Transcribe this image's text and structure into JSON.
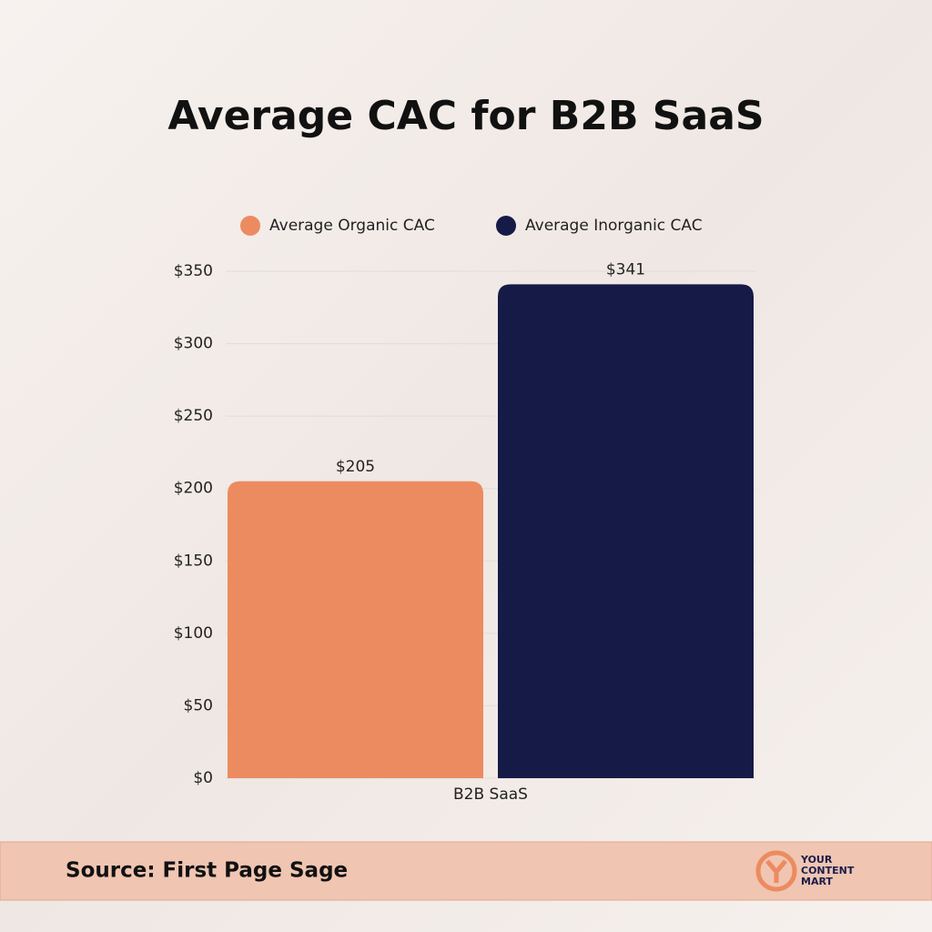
{
  "chart_data": {
    "type": "bar",
    "title": "Average CAC for B2B SaaS",
    "categories": [
      "B2B SaaS"
    ],
    "series": [
      {
        "name": "Average Organic CAC",
        "color": "#ec8b60",
        "values": [
          205
        ],
        "value_labels": [
          "$205"
        ]
      },
      {
        "name": "Average Inorganic CAC",
        "color": "#161a47",
        "values": [
          341
        ],
        "value_labels": [
          "$341"
        ]
      }
    ],
    "ylim": [
      0,
      350
    ],
    "yticks": [
      {
        "value": 0,
        "label": "$0"
      },
      {
        "value": 50,
        "label": "$50"
      },
      {
        "value": 100,
        "label": "$100"
      },
      {
        "value": 150,
        "label": "$150"
      },
      {
        "value": 200,
        "label": "$200"
      },
      {
        "value": 250,
        "label": "$250"
      },
      {
        "value": 300,
        "label": "$300"
      },
      {
        "value": 350,
        "label": "$350"
      }
    ],
    "grid": true,
    "legend": "top"
  },
  "footer": {
    "source": "Source: First Page Sage",
    "logo": [
      "YOUR",
      "CONTENT",
      "MART"
    ]
  }
}
